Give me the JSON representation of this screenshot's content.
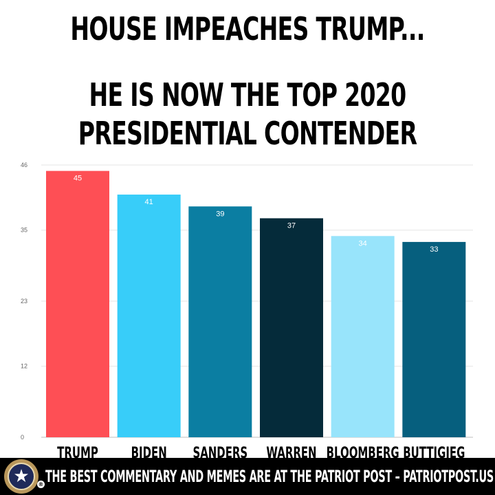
{
  "headline": {
    "line1": "HOUSE IMPEACHES TRUMP...",
    "line2": "HE IS NOW THE TOP 2020",
    "line3": "PRESIDENTIAL CONTENDER"
  },
  "chart_data": {
    "type": "bar",
    "categories": [
      "TRUMP",
      "BIDEN",
      "SANDERS",
      "WARREN",
      "BLOOMBERG",
      "BUTTIGIEG"
    ],
    "values": [
      45,
      41,
      39,
      37,
      34,
      33
    ],
    "data_labels": [
      "45",
      "41",
      "39",
      "37",
      "34",
      "33"
    ],
    "colors": [
      "#fe4f55",
      "#38cdf9",
      "#0b7ea2",
      "#052b3a",
      "#98e4fb",
      "#065f7e"
    ],
    "ylim": [
      0,
      46
    ],
    "yticks": [
      0,
      12,
      23,
      35,
      46
    ],
    "grid": true,
    "title": "",
    "xlabel": "",
    "ylabel": ""
  },
  "footer": {
    "text": "THE BEST COMMENTARY AND MEMES ARE AT THE PATRIOT POST – PATRIOTPOST.US",
    "seal_icon": "patriot-post-seal-icon",
    "registered_mark": "®"
  }
}
